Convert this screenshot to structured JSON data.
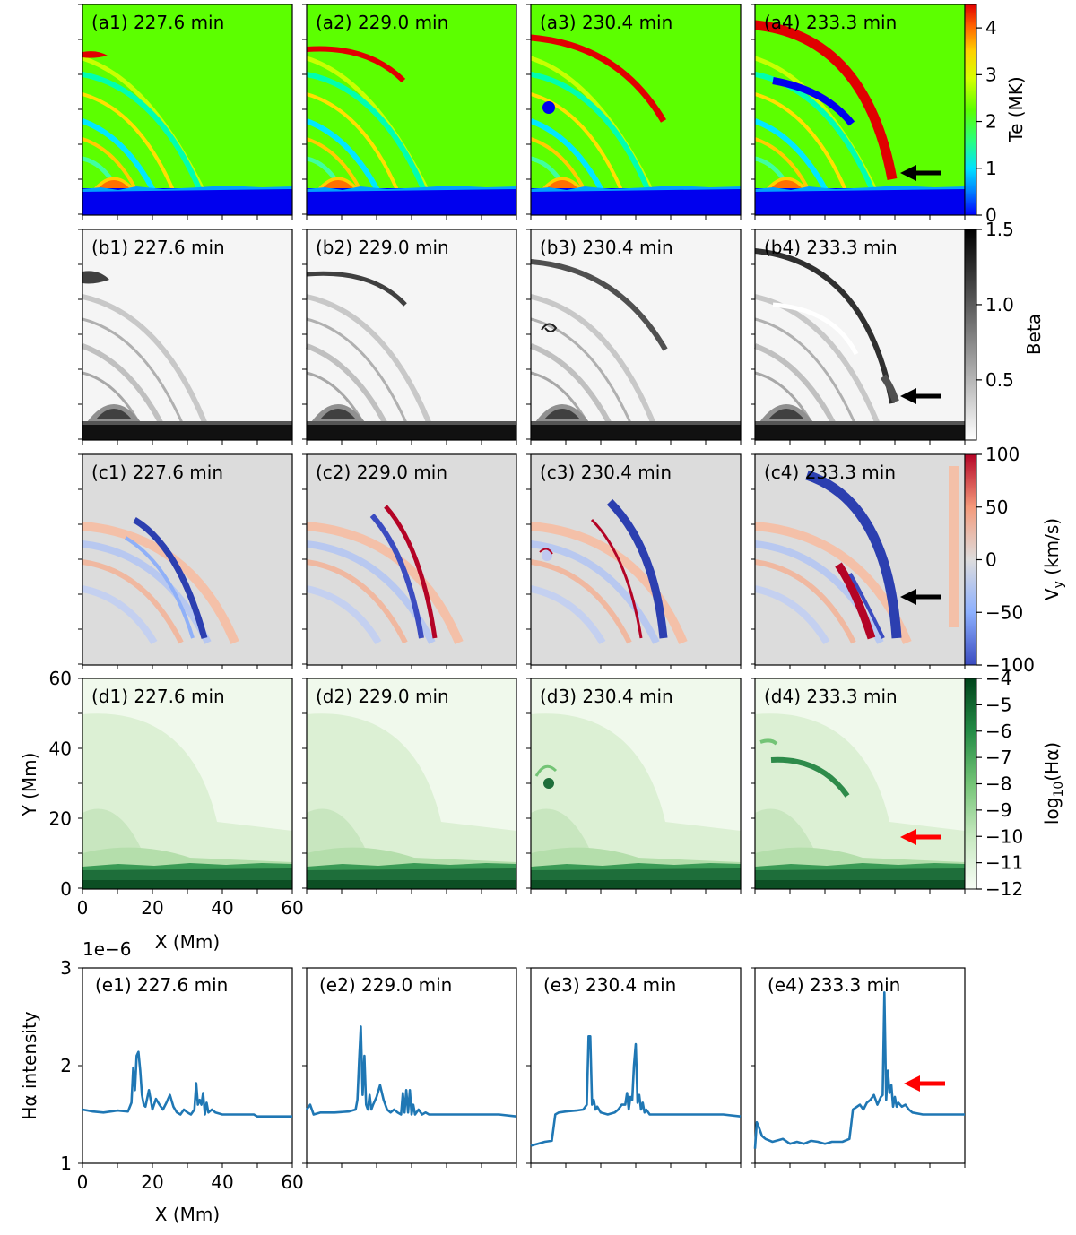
{
  "figure": {
    "times": [
      "227.6 min",
      "229.0 min",
      "230.4 min",
      "233.3 min"
    ],
    "row_a": {
      "panel_tags": [
        "(a1)",
        "(a2)",
        "(a3)",
        "(a4)"
      ],
      "colorbar_label": "Te (MK)",
      "colorbar_ticks": [
        "0",
        "1",
        "2",
        "3",
        "4"
      ],
      "colorbar_range": [
        0,
        4.5
      ]
    },
    "row_b": {
      "panel_tags": [
        "(b1)",
        "(b2)",
        "(b3)",
        "(b4)"
      ],
      "colorbar_label": "Beta",
      "colorbar_ticks": [
        "0.5",
        "1.0",
        "1.5"
      ],
      "colorbar_range": [
        0.1,
        1.5
      ]
    },
    "row_c": {
      "panel_tags": [
        "(c1)",
        "(c2)",
        "(c3)",
        "(c4)"
      ],
      "colorbar_label_main": "V",
      "colorbar_label_sub": "y",
      "colorbar_label_unit": " (km/s)",
      "colorbar_ticks": [
        "−100",
        "−50",
        "0",
        "50",
        "100"
      ],
      "colorbar_range": [
        -100,
        100
      ]
    },
    "row_d": {
      "panel_tags": [
        "(d1)",
        "(d2)",
        "(d3)",
        "(d4)"
      ],
      "colorbar_label_main": "log",
      "colorbar_label_sub": "10",
      "colorbar_label_unit": "(Hα)",
      "colorbar_ticks": [
        "−4",
        "−5",
        "−6",
        "−7",
        "−8",
        "−9",
        "−10",
        "−11",
        "−12"
      ],
      "colorbar_range": [
        -12,
        -4
      ],
      "xlabel": "X (Mm)",
      "ylabel": "Y (Mm)",
      "xticks": [
        "0",
        "20",
        "40",
        "60"
      ],
      "yticks": [
        "0",
        "20",
        "40",
        "60"
      ]
    },
    "row_e": {
      "panel_tags": [
        "(e1)",
        "(e2)",
        "(e3)",
        "(e4)"
      ],
      "xlabel": "X (Mm)",
      "ylabel": "Hα intensity",
      "xticks": [
        "0",
        "20",
        "40",
        "60"
      ],
      "yticks": [
        "1",
        "2",
        "3"
      ],
      "offset_text": "1e−6"
    }
  },
  "chart_data": {
    "type": "line",
    "title": "",
    "xlabel": "X (Mm)",
    "ylabel": "Hα intensity (×1e−6)",
    "xlim": [
      0,
      60
    ],
    "ylim": [
      1,
      3
    ],
    "series": [
      {
        "name": "(e1) 227.6 min",
        "x": [
          0,
          3,
          6,
          10,
          13,
          14,
          14.5,
          15,
          15.5,
          16,
          16.5,
          17,
          17.5,
          18,
          19,
          20,
          21,
          22,
          23,
          24,
          25,
          26,
          27,
          28,
          29,
          30,
          31,
          32,
          32.5,
          33,
          33.5,
          34,
          34.5,
          35,
          35.5,
          36,
          37,
          38,
          40,
          45,
          49,
          50,
          55,
          60
        ],
        "y": [
          1.55,
          1.53,
          1.52,
          1.54,
          1.53,
          1.62,
          1.98,
          1.75,
          2.1,
          2.14,
          1.95,
          1.7,
          1.6,
          1.58,
          1.75,
          1.55,
          1.66,
          1.6,
          1.55,
          1.62,
          1.7,
          1.58,
          1.52,
          1.5,
          1.55,
          1.52,
          1.5,
          1.55,
          1.82,
          1.6,
          1.65,
          1.6,
          1.72,
          1.5,
          1.62,
          1.52,
          1.55,
          1.52,
          1.5,
          1.5,
          1.5,
          1.48,
          1.48,
          1.48
        ]
      },
      {
        "name": "(e2) 229.0 min",
        "x": [
          0,
          1,
          2,
          4,
          8,
          12,
          14,
          14.5,
          15,
          15.5,
          16,
          16.5,
          17,
          17.5,
          18,
          18.5,
          19,
          20,
          21,
          22,
          23,
          24,
          25,
          26,
          27,
          27.5,
          28,
          28.5,
          29,
          29.5,
          30,
          30.5,
          31,
          32,
          33,
          34,
          35,
          40,
          45,
          50,
          55,
          60
        ],
        "y": [
          1.55,
          1.6,
          1.5,
          1.52,
          1.52,
          1.53,
          1.55,
          1.65,
          2.05,
          2.4,
          1.7,
          2.1,
          1.6,
          1.55,
          1.7,
          1.55,
          1.6,
          1.68,
          1.8,
          1.65,
          1.55,
          1.52,
          1.55,
          1.52,
          1.5,
          1.72,
          1.52,
          1.75,
          1.52,
          1.75,
          1.5,
          1.6,
          1.5,
          1.55,
          1.5,
          1.52,
          1.5,
          1.5,
          1.5,
          1.5,
          1.5,
          1.48
        ]
      },
      {
        "name": "(e3) 230.4 min",
        "x": [
          0,
          2,
          4,
          6,
          7,
          8,
          10,
          13,
          15,
          16,
          16.5,
          17,
          17.5,
          18,
          18.5,
          19,
          20,
          22,
          24,
          25,
          26,
          27,
          27.5,
          28,
          28.5,
          29,
          29.5,
          30,
          30.5,
          31,
          31.5,
          32,
          32.5,
          33,
          34,
          35,
          40,
          45,
          50,
          55,
          60
        ],
        "y": [
          1.18,
          1.2,
          1.22,
          1.23,
          1.5,
          1.52,
          1.53,
          1.54,
          1.55,
          1.6,
          2.3,
          2.3,
          1.6,
          1.65,
          1.55,
          1.58,
          1.52,
          1.5,
          1.52,
          1.55,
          1.6,
          1.6,
          1.72,
          1.55,
          1.68,
          1.65,
          2.0,
          2.22,
          1.62,
          1.7,
          1.55,
          1.62,
          1.52,
          1.55,
          1.5,
          1.5,
          1.5,
          1.5,
          1.5,
          1.5,
          1.48
        ]
      },
      {
        "name": "(e4) 233.3 min",
        "x": [
          0,
          0.5,
          1,
          2,
          3,
          5,
          8,
          10,
          12,
          14,
          16,
          18,
          20,
          22,
          25,
          27,
          27.5,
          28,
          30,
          31,
          32,
          33,
          34,
          35,
          36,
          36.5,
          37,
          37.5,
          38,
          38.5,
          39,
          39.5,
          40,
          40.5,
          41,
          42,
          43,
          44,
          45,
          48,
          50,
          55,
          60
        ],
        "y": [
          1.15,
          1.42,
          1.38,
          1.28,
          1.25,
          1.22,
          1.25,
          1.2,
          1.22,
          1.2,
          1.23,
          1.22,
          1.2,
          1.22,
          1.22,
          1.25,
          1.4,
          1.55,
          1.6,
          1.55,
          1.62,
          1.65,
          1.7,
          1.6,
          1.68,
          1.7,
          2.75,
          1.65,
          1.95,
          1.72,
          1.8,
          1.58,
          1.68,
          1.58,
          1.62,
          1.58,
          1.6,
          1.55,
          1.52,
          1.5,
          1.5,
          1.5,
          1.5
        ]
      }
    ],
    "annotations": [
      "black arrows mark the loop footpoint in panels (a4), (b4), (c4)",
      "red arrows mark the feature in panels (d4) and (e4)"
    ]
  }
}
